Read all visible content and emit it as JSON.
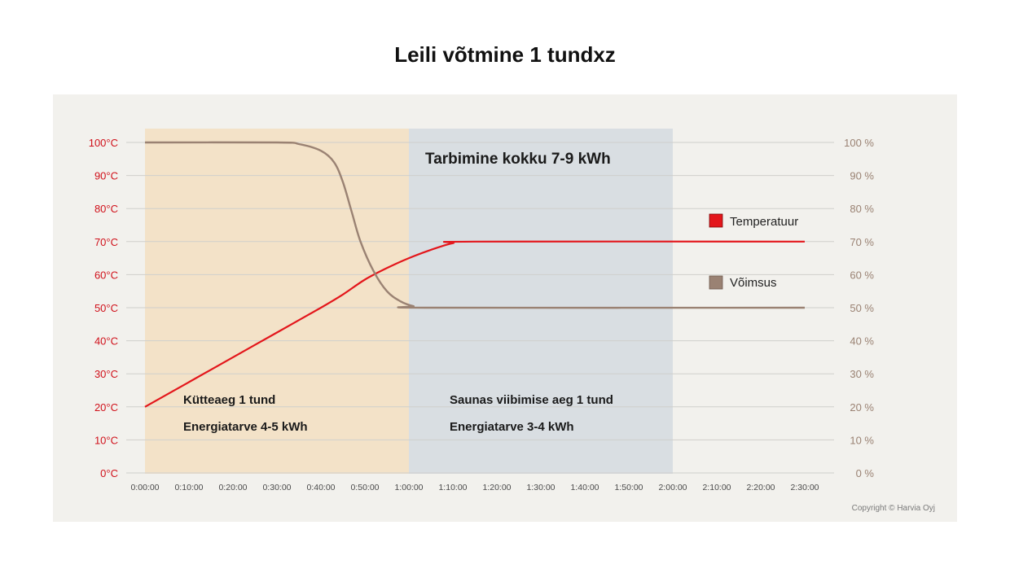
{
  "colors": {
    "panel": "#f2f1ed",
    "heat_band": "#f3e2c8",
    "stay_band": "#d9dee2",
    "grid": "#cfcfcc",
    "temperature": "#e3161b",
    "power": "#9a8273",
    "left_axis_text": "#d0101a",
    "right_axis_text": "#9a8273"
  },
  "chart_data": {
    "type": "line",
    "title": "Leili võtmine 1 tundxz",
    "x_ticks": [
      "0:00:00",
      "0:10:00",
      "0:20:00",
      "0:30:00",
      "0:40:00",
      "0:50:00",
      "1:00:00",
      "1:10:00",
      "1:20:00",
      "1:30:00",
      "1:40:00",
      "1:50:00",
      "2:00:00",
      "2:10:00",
      "2:20:00",
      "2:30:00"
    ],
    "xlim": [
      0,
      150
    ],
    "y_left": {
      "ticks": [
        "0°C",
        "10°C",
        "20°C",
        "30°C",
        "40°C",
        "50°C",
        "60°C",
        "70°C",
        "80°C",
        "90°C",
        "100°C"
      ],
      "range": [
        0,
        100
      ],
      "unit": "°C"
    },
    "y_right": {
      "ticks": [
        "0 %",
        "10 %",
        "20 %",
        "30 %",
        "40 %",
        "50 %",
        "60 %",
        "70 %",
        "80 %",
        "90 %",
        "100 %"
      ],
      "range": [
        0,
        100
      ],
      "unit": "%"
    },
    "grid": true,
    "legend_position": "right",
    "series": [
      {
        "name": "Temperatuur",
        "axis": "left",
        "color": "#e3161b",
        "points": [
          [
            0,
            20
          ],
          [
            10,
            27.5
          ],
          [
            20,
            35
          ],
          [
            30,
            42.5
          ],
          [
            40,
            50
          ],
          [
            45,
            54
          ],
          [
            50,
            58.5
          ],
          [
            55,
            62
          ],
          [
            60,
            65
          ],
          [
            65,
            67.5
          ],
          [
            70,
            69.5
          ],
          [
            75,
            70
          ],
          [
            150,
            70
          ]
        ]
      },
      {
        "name": "Võimsus",
        "axis": "right",
        "color": "#9a8273",
        "points": [
          [
            0,
            100
          ],
          [
            30,
            100
          ],
          [
            35,
            99.5
          ],
          [
            40,
            97.5
          ],
          [
            43,
            94
          ],
          [
            45,
            88
          ],
          [
            47,
            79
          ],
          [
            49,
            70
          ],
          [
            52,
            61
          ],
          [
            55,
            55
          ],
          [
            58,
            52
          ],
          [
            61,
            50.5
          ],
          [
            65,
            50
          ],
          [
            150,
            50
          ]
        ]
      }
    ],
    "bands": [
      {
        "name": "heating",
        "x_start": 0,
        "x_end": 60,
        "color": "#f3e2c8"
      },
      {
        "name": "stay",
        "x_start": 60,
        "x_end": 120,
        "color": "#d9dee2"
      }
    ],
    "annotations": {
      "total": "Tarbimine kokku 7-9 kWh",
      "heat_time": "Kütteaeg 1 tund",
      "heat_energy": "Energiatarve 4-5 kWh",
      "stay_time": "Saunas viibimise aeg 1 tund",
      "stay_energy": "Energiatarve 3-4 kWh"
    },
    "copyright": "Copyright © Harvia Oyj"
  }
}
